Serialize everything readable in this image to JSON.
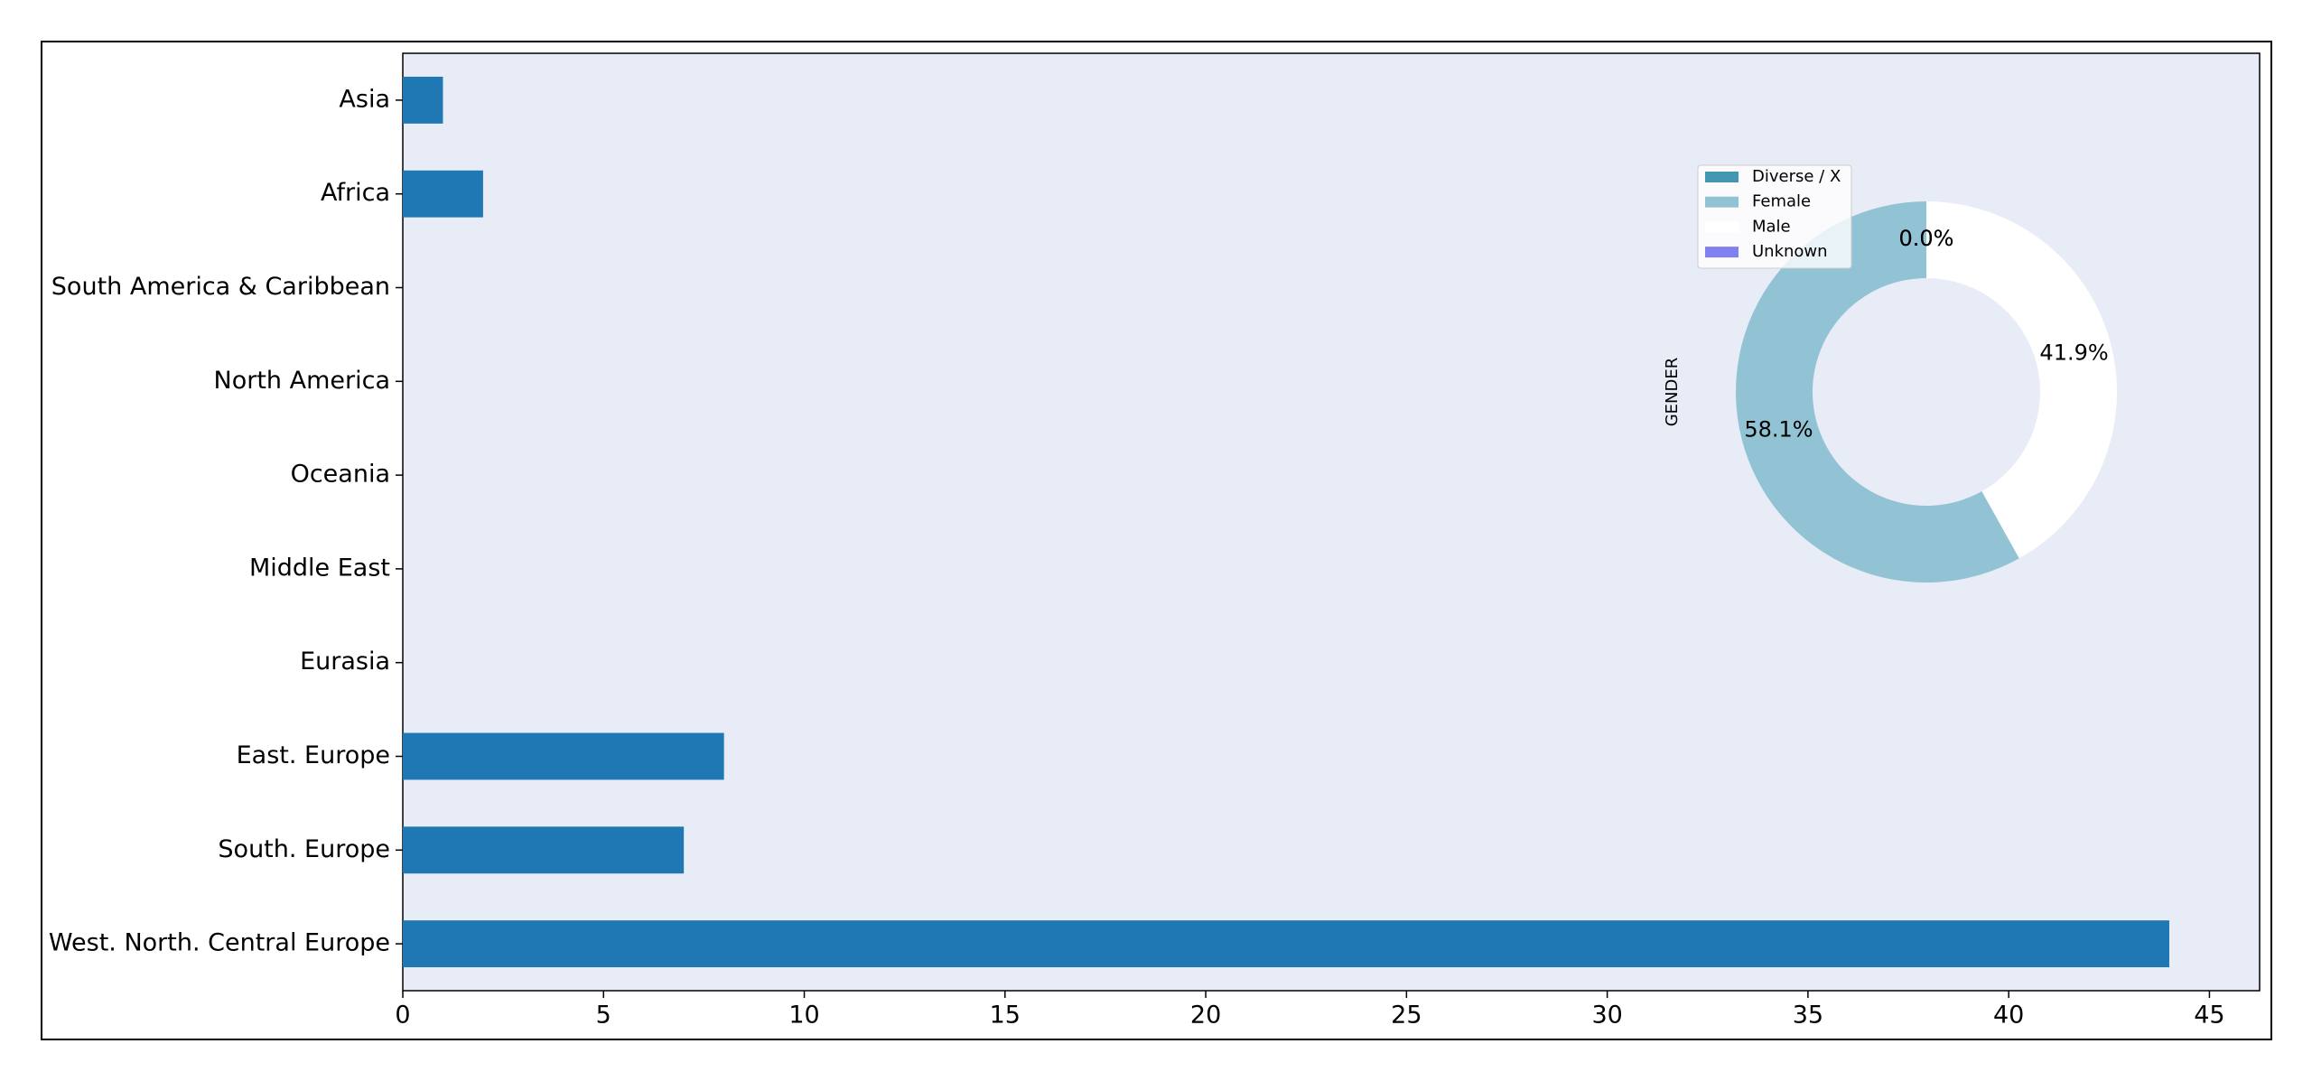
{
  "chart_data": [
    {
      "type": "bar",
      "orientation": "horizontal",
      "categories": [
        "Asia",
        "Africa",
        "South America & Caribbean",
        "North America",
        "Oceania",
        "Middle East",
        "Eurasia",
        "East. Europe",
        "South. Europe",
        "West. North. Central Europe"
      ],
      "values": [
        1,
        2,
        0,
        0,
        0,
        0,
        0,
        8,
        7,
        44
      ],
      "color": "#1f77b4",
      "xlim": [
        0,
        46.25
      ],
      "xticks": [
        0,
        5,
        10,
        15,
        20,
        25,
        30,
        35,
        40,
        45
      ],
      "grid": false
    },
    {
      "type": "pie",
      "ylabel": "GENDER",
      "labels": [
        "Diverse / X",
        "Female",
        "Male",
        "Unknown"
      ],
      "values": [
        0.0,
        58.1,
        41.9,
        0.0
      ],
      "value_labels": [
        "0.0%",
        "58.1%",
        "41.9%",
        "0.0%"
      ],
      "colors": [
        "#4397b1",
        "#92c3d4",
        "#ffffff",
        "#8080f0"
      ],
      "donut": true
    }
  ]
}
